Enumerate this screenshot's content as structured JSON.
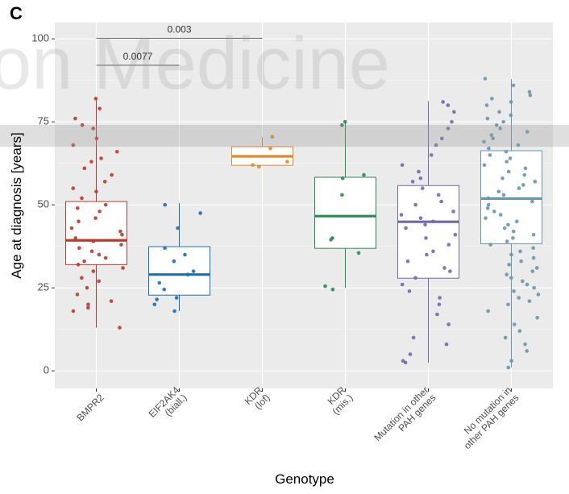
{
  "chart_data": {
    "type": "box",
    "panel_label": "C",
    "watermark": "on Medicine",
    "y_label": "Age at diagnosis [years]",
    "x_label": "Genotype",
    "ylim": [
      -5.3,
      104.9
    ],
    "yticks": [
      0,
      25,
      50,
      75,
      100
    ],
    "grid": true,
    "categories": [
      [
        "BMPR2"
      ],
      [
        "EIF2AK4",
        "(biall.)"
      ],
      [
        "KDR",
        "(lof)"
      ],
      [
        "KDR",
        "(mis.)"
      ],
      [
        "Mutation in other",
        "PAH genes"
      ],
      [
        "No mutation in",
        "other PAH genes"
      ]
    ],
    "annotations": [
      {
        "label": "0.003"
      },
      {
        "label": "0.0077"
      }
    ],
    "boxes": [
      {
        "color": "#b83b2e",
        "whislo": 13,
        "q1": 32,
        "med": 39.3,
        "q3": 51,
        "whishi": 82,
        "points": [
          82,
          79,
          76,
          74,
          73,
          70,
          68,
          66,
          64,
          63,
          61,
          59,
          57,
          55,
          54,
          52,
          50,
          49,
          48,
          46,
          45,
          43,
          42,
          41,
          40,
          39,
          38,
          37,
          36,
          35,
          34,
          33,
          32,
          31,
          30,
          28,
          27,
          25,
          23,
          21,
          20,
          19,
          18,
          13
        ]
      },
      {
        "color": "#1a6fb5",
        "whislo": 18,
        "q1": 22.8,
        "med": 29,
        "q3": 37.4,
        "whishi": 50.5,
        "points": [
          50,
          47.5,
          43,
          37,
          35,
          33,
          30,
          29,
          26.5,
          24.5,
          22,
          21.5,
          20,
          18
        ]
      },
      {
        "color": "#e0882b",
        "whislo": 61.9,
        "q1": 61.9,
        "med": 64.6,
        "q3": 67.5,
        "whishi": 70.4,
        "points": [
          70.5,
          67,
          63,
          62,
          61.5
        ]
      },
      {
        "color": "#2a8a55",
        "whislo": 25,
        "q1": 36.9,
        "med": 46.6,
        "q3": 58.3,
        "whishi": 75.2,
        "points": [
          75,
          74,
          59,
          58,
          53,
          40,
          39.5,
          35.5,
          25.5,
          24.5
        ]
      },
      {
        "color": "#7566b0",
        "whislo": 2.4,
        "q1": 27.9,
        "med": 44.9,
        "q3": 55.8,
        "whishi": 81.3,
        "points": [
          81,
          80,
          78,
          75,
          73,
          70,
          68,
          65,
          62,
          60,
          58,
          57,
          55,
          53,
          51,
          50,
          48,
          47,
          46,
          45,
          44,
          43,
          41,
          40,
          38,
          36,
          35,
          33,
          31,
          30,
          28,
          26,
          24,
          22,
          20,
          17,
          14,
          10,
          8,
          5,
          3,
          2.5
        ]
      },
      {
        "color": "#6796ad",
        "whislo": 1,
        "q1": 38.3,
        "med": 51.9,
        "q3": 66.3,
        "whishi": 87.9,
        "points": [
          88,
          86,
          84,
          83,
          82,
          81,
          80,
          78,
          77,
          76,
          75,
          74,
          73,
          72,
          71,
          70,
          69,
          68,
          67,
          66,
          65,
          64,
          63,
          62,
          61,
          60,
          59,
          58,
          57,
          56,
          55,
          54,
          53,
          52,
          51,
          50,
          49,
          48,
          47,
          46,
          45,
          44,
          43,
          42,
          41,
          40,
          39,
          38,
          37,
          36,
          35,
          34,
          33,
          32,
          31,
          30,
          29,
          28,
          27,
          26,
          25,
          24,
          23,
          22,
          21,
          20,
          18,
          16,
          14,
          12,
          10,
          8,
          6,
          3,
          1
        ]
      }
    ]
  }
}
